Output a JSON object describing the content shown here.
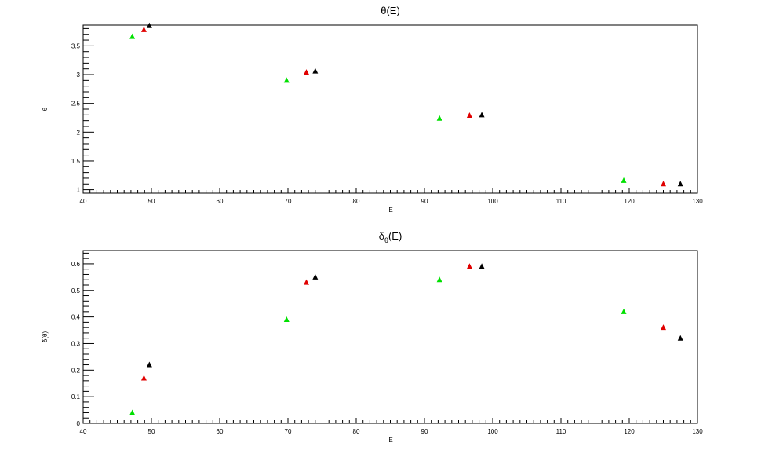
{
  "chart_data": [
    {
      "type": "scatter",
      "title": "θ(E)",
      "xlabel": "E",
      "ylabel": "θ",
      "xlim": [
        40,
        130
      ],
      "ylim": [
        0.94,
        3.86
      ],
      "x_ticks": [
        40,
        50,
        60,
        70,
        80,
        90,
        100,
        110,
        120,
        130
      ],
      "x_tick_labels": [
        "40",
        "50",
        "60",
        "70",
        "80",
        "90",
        "100",
        "110",
        "120",
        "130"
      ],
      "y_ticks": [
        1,
        1.5,
        2,
        2.5,
        3,
        3.5
      ],
      "y_tick_labels": [
        "1",
        "1.5",
        "2",
        "2.5",
        "3",
        "3.5"
      ],
      "grid": false,
      "series": [
        {
          "color": "#00e000",
          "x": [
            47.2,
            69.8,
            92.2,
            119.2
          ],
          "y": [
            3.66,
            2.9,
            2.24,
            1.16
          ]
        },
        {
          "color": "#e00000",
          "x": [
            48.9,
            72.7,
            96.6,
            125.0
          ],
          "y": [
            3.78,
            3.04,
            2.29,
            1.1
          ]
        },
        {
          "color": "#000000",
          "x": [
            49.7,
            74.0,
            98.4,
            127.5
          ],
          "y": [
            3.85,
            3.06,
            2.3,
            1.1
          ]
        }
      ]
    },
    {
      "type": "scatter",
      "title_main": "δ",
      "title_sub": "θ",
      "title_rest": "(E)",
      "xlabel": "E",
      "ylabel": "δ(θ)",
      "xlim": [
        40,
        130
      ],
      "ylim": [
        0,
        0.65
      ],
      "x_ticks": [
        40,
        50,
        60,
        70,
        80,
        90,
        100,
        110,
        120,
        130
      ],
      "x_tick_labels": [
        "40",
        "50",
        "60",
        "70",
        "80",
        "90",
        "100",
        "110",
        "120",
        "130"
      ],
      "y_ticks": [
        0,
        0.1,
        0.2,
        0.3,
        0.4,
        0.5,
        0.6
      ],
      "y_tick_labels": [
        "0",
        "0.1",
        "0.2",
        "0.3",
        "0.4",
        "0.5",
        "0.6"
      ],
      "grid": false,
      "series": [
        {
          "color": "#00e000",
          "x": [
            47.2,
            69.8,
            92.2,
            119.2
          ],
          "y": [
            0.04,
            0.39,
            0.54,
            0.42
          ]
        },
        {
          "color": "#e00000",
          "x": [
            48.9,
            72.7,
            96.6,
            125.0
          ],
          "y": [
            0.17,
            0.53,
            0.59,
            0.36
          ]
        },
        {
          "color": "#000000",
          "x": [
            49.7,
            74.0,
            98.4,
            127.5
          ],
          "y": [
            0.22,
            0.55,
            0.59,
            0.32
          ]
        }
      ]
    }
  ]
}
